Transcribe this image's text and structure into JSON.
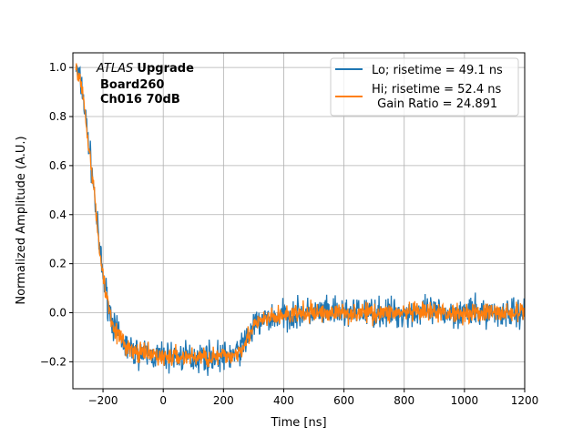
{
  "chart_data": {
    "type": "line",
    "title": "",
    "xlabel": "Time [ns]",
    "ylabel": "Normalized Amplitude (A.U.)",
    "xlim": [
      -300,
      1200
    ],
    "ylim": [
      -0.31,
      1.06
    ],
    "xticks": [
      -200,
      0,
      200,
      400,
      600,
      800,
      1000,
      1200
    ],
    "xtick_labels": [
      "−200",
      "0",
      "200",
      "400",
      "600",
      "800",
      "1000",
      "1200"
    ],
    "yticks": [
      -0.2,
      0.0,
      0.2,
      0.4,
      0.6,
      0.8,
      1.0
    ],
    "ytick_labels": [
      "−0.2",
      "0.0",
      "0.2",
      "0.4",
      "0.6",
      "0.8",
      "1.0"
    ],
    "grid": true,
    "legend_position": "top-right",
    "annotation": {
      "atlas": "ATLAS",
      "upgrade": "Upgrade",
      "line2": "Board260",
      "line3": "Ch016 70dB"
    },
    "series": [
      {
        "name": "Lo; risetime = 49.1 ns",
        "color": "#1f77b4",
        "noise": 0.03,
        "x": [
          -290,
          -270,
          -250,
          -230,
          -215,
          -200,
          -180,
          -160,
          -140,
          -120,
          -100,
          -50,
          0,
          100,
          200,
          240,
          260,
          280,
          300,
          330,
          400,
          500,
          1200
        ],
        "y": [
          1.0,
          0.92,
          0.72,
          0.5,
          0.3,
          0.15,
          0.02,
          -0.07,
          -0.11,
          -0.14,
          -0.16,
          -0.17,
          -0.18,
          -0.18,
          -0.18,
          -0.17,
          -0.14,
          -0.1,
          -0.06,
          -0.03,
          -0.01,
          0.0,
          0.0
        ]
      },
      {
        "name": "Hi; risetime = 52.4 ns",
        "name2": " Gain Ratio = 24.891",
        "color": "#ff7f0e",
        "noise": 0.02,
        "x": [
          -290,
          -270,
          -250,
          -230,
          -215,
          -200,
          -180,
          -160,
          -140,
          -120,
          -100,
          -50,
          0,
          100,
          200,
          240,
          260,
          280,
          300,
          330,
          400,
          500,
          1200
        ],
        "y": [
          1.0,
          0.92,
          0.72,
          0.5,
          0.3,
          0.15,
          0.02,
          -0.07,
          -0.11,
          -0.14,
          -0.16,
          -0.17,
          -0.18,
          -0.18,
          -0.18,
          -0.17,
          -0.14,
          -0.1,
          -0.06,
          -0.03,
          -0.01,
          0.0,
          0.0
        ]
      }
    ]
  }
}
